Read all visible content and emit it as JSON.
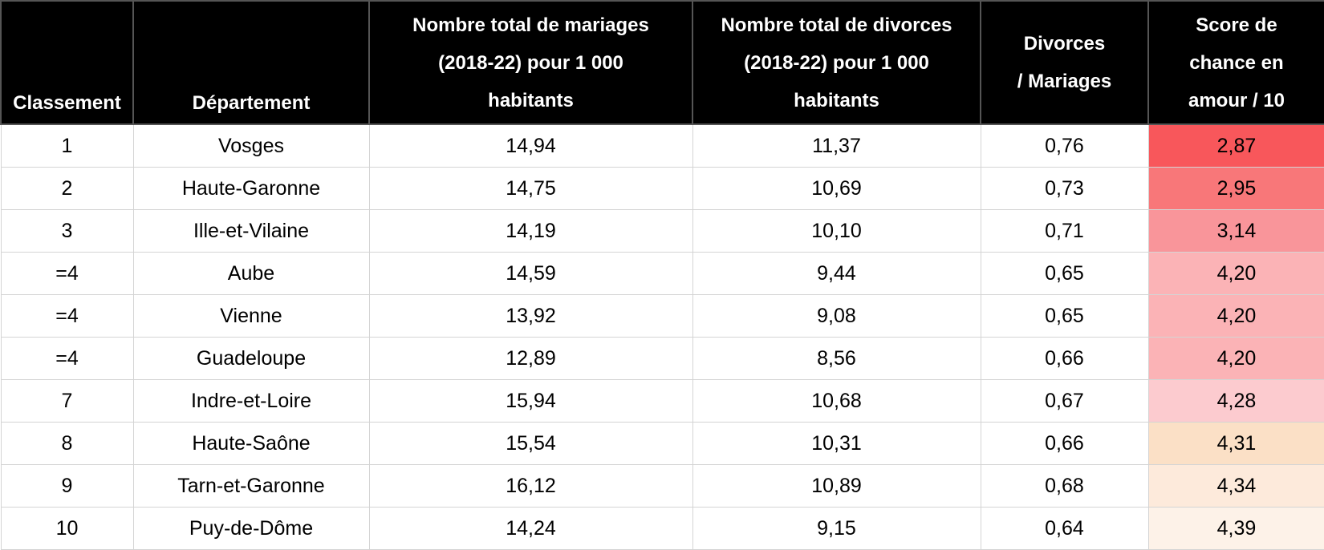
{
  "table": {
    "header": [
      [
        "Classement"
      ],
      [
        "Département"
      ],
      [
        "Nombre total de mariages",
        "(2018-22) pour 1 000",
        "habitants"
      ],
      [
        "Nombre total de divorces",
        "(2018-22) pour 1 000",
        "habitants"
      ],
      [
        "Divorces",
        "/ Mariages"
      ],
      [
        "Score de",
        "chance en",
        "amour / 10"
      ]
    ],
    "rows": [
      [
        "1",
        "Vosges",
        "14,94",
        "11,37",
        "0,76",
        "2,87"
      ],
      [
        "2",
        "Haute-Garonne",
        "14,75",
        "10,69",
        "0,73",
        "2,95"
      ],
      [
        "3",
        "Ille-et-Vilaine",
        "14,19",
        "10,10",
        "0,71",
        "3,14"
      ],
      [
        "=4",
        "Aube",
        "14,59",
        "9,44",
        "0,65",
        "4,20"
      ],
      [
        "=4",
        "Vienne",
        "13,92",
        "9,08",
        "0,65",
        "4,20"
      ],
      [
        "=4",
        "Guadeloupe",
        "12,89",
        "8,56",
        "0,66",
        "4,20"
      ],
      [
        "7",
        "Indre-et-Loire",
        "15,94",
        "10,68",
        "0,67",
        "4,28"
      ],
      [
        "8",
        "Haute-Saône",
        "15,54",
        "10,31",
        "0,66",
        "4,31"
      ],
      [
        "9",
        "Tarn-et-Garonne",
        "16,12",
        "10,89",
        "0,68",
        "4,34"
      ],
      [
        "10",
        "Puy-de-Dôme",
        "14,24",
        "9,15",
        "0,64",
        "4,39"
      ]
    ],
    "score_colors": [
      "#f8575b",
      "#f87779",
      "#f9959a",
      "#fbb3b6",
      "#fbb3b6",
      "#fbb3b6",
      "#fccbcf",
      "#fbe0c6",
      "#fdeadb",
      "#fdf2e8"
    ]
  }
}
